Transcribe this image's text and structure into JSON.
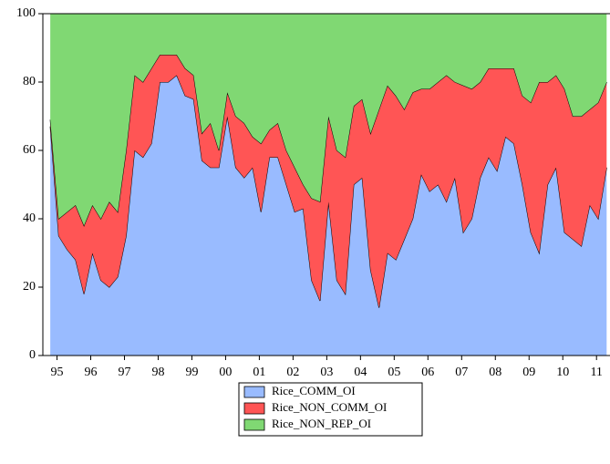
{
  "chart_data": {
    "type": "stacked_area",
    "x": [
      1995.3,
      1995.55,
      1995.8,
      1996.05,
      1996.3,
      1996.55,
      1996.8,
      1997.05,
      1997.3,
      1997.55,
      1997.8,
      1998.05,
      1998.3,
      1998.55,
      1998.8,
      1999.05,
      1999.3,
      1999.55,
      1999.8,
      2000.05,
      2000.3,
      2000.55,
      2000.8,
      2001.05,
      2001.3,
      2001.55,
      2001.8,
      2002.05,
      2002.3,
      2002.55,
      2002.8,
      2003.05,
      2003.3,
      2003.55,
      2003.8,
      2004.05,
      2004.3,
      2004.55,
      2004.8,
      2005.05,
      2005.3,
      2005.55,
      2005.8,
      2006.05,
      2006.3,
      2006.55,
      2006.8,
      2007.05,
      2007.3,
      2007.55,
      2007.8,
      2008.05,
      2008.3,
      2008.55,
      2008.8,
      2009.05,
      2009.3,
      2009.55,
      2009.8,
      2010.05,
      2010.3,
      2010.55,
      2010.8,
      2011.05,
      2011.3,
      2011.55,
      2011.8
    ],
    "series": [
      {
        "name": "Rice_COMM_OI",
        "color": "#99bbff",
        "values": [
          67,
          35,
          31,
          28,
          18,
          30,
          22,
          20,
          23,
          35,
          60,
          58,
          62,
          80,
          80,
          82,
          76,
          75,
          57,
          55,
          55,
          70,
          55,
          52,
          55,
          42,
          58,
          58,
          50,
          42,
          43,
          22,
          16,
          45,
          22,
          18,
          50,
          52,
          25,
          14,
          30,
          28,
          34,
          40,
          53,
          48,
          50,
          45,
          52,
          36,
          40,
          52,
          58,
          54,
          64,
          62,
          50,
          36,
          30,
          50,
          55,
          36,
          34,
          32,
          44,
          40,
          55
        ]
      },
      {
        "name": "Rice_NON_COMM_OI",
        "color": "#ff5555",
        "values": [
          2,
          5,
          11,
          16,
          20,
          14,
          18,
          25,
          19,
          25,
          22,
          22,
          22,
          8,
          8,
          6,
          8,
          7,
          8,
          13,
          5,
          7,
          15,
          16,
          9,
          20,
          8,
          10,
          10,
          13,
          7,
          24,
          29,
          25,
          38,
          40,
          23,
          23,
          40,
          58,
          49,
          48,
          38,
          37,
          25,
          30,
          30,
          37,
          28,
          43,
          38,
          28,
          26,
          30,
          20,
          22,
          26,
          38,
          50,
          30,
          27,
          42,
          36,
          38,
          28,
          34,
          25
        ]
      },
      {
        "name": "Rice_NON_REP_OI",
        "color": "#80d873",
        "values": [
          31,
          60,
          58,
          56,
          62,
          56,
          60,
          55,
          58,
          40,
          18,
          20,
          16,
          12,
          12,
          12,
          16,
          18,
          35,
          32,
          40,
          23,
          30,
          32,
          36,
          38,
          34,
          32,
          40,
          45,
          50,
          54,
          55,
          30,
          40,
          42,
          27,
          25,
          35,
          28,
          21,
          24,
          28,
          23,
          22,
          22,
          20,
          18,
          20,
          21,
          22,
          20,
          16,
          16,
          16,
          16,
          24,
          26,
          20,
          20,
          18,
          22,
          30,
          30,
          28,
          26,
          20
        ]
      }
    ],
    "xlim": [
      1995.08,
      2011.9
    ],
    "xticks": [
      {
        "value": 1995.5,
        "label": "95"
      },
      {
        "value": 1996.5,
        "label": "96"
      },
      {
        "value": 1997.5,
        "label": "97"
      },
      {
        "value": 1998.5,
        "label": "98"
      },
      {
        "value": 1999.5,
        "label": "99"
      },
      {
        "value": 2000.5,
        "label": "00"
      },
      {
        "value": 2001.5,
        "label": "01"
      },
      {
        "value": 2002.5,
        "label": "02"
      },
      {
        "value": 2003.5,
        "label": "03"
      },
      {
        "value": 2004.5,
        "label": "04"
      },
      {
        "value": 2005.5,
        "label": "05"
      },
      {
        "value": 2006.5,
        "label": "06"
      },
      {
        "value": 2007.5,
        "label": "07"
      },
      {
        "value": 2008.5,
        "label": "08"
      },
      {
        "value": 2009.5,
        "label": "09"
      },
      {
        "value": 2010.5,
        "label": "10"
      },
      {
        "value": 2011.5,
        "label": "11"
      }
    ],
    "ylim": [
      0,
      100
    ],
    "yticks": [
      0,
      20,
      40,
      60,
      80,
      100
    ],
    "grid": false
  }
}
